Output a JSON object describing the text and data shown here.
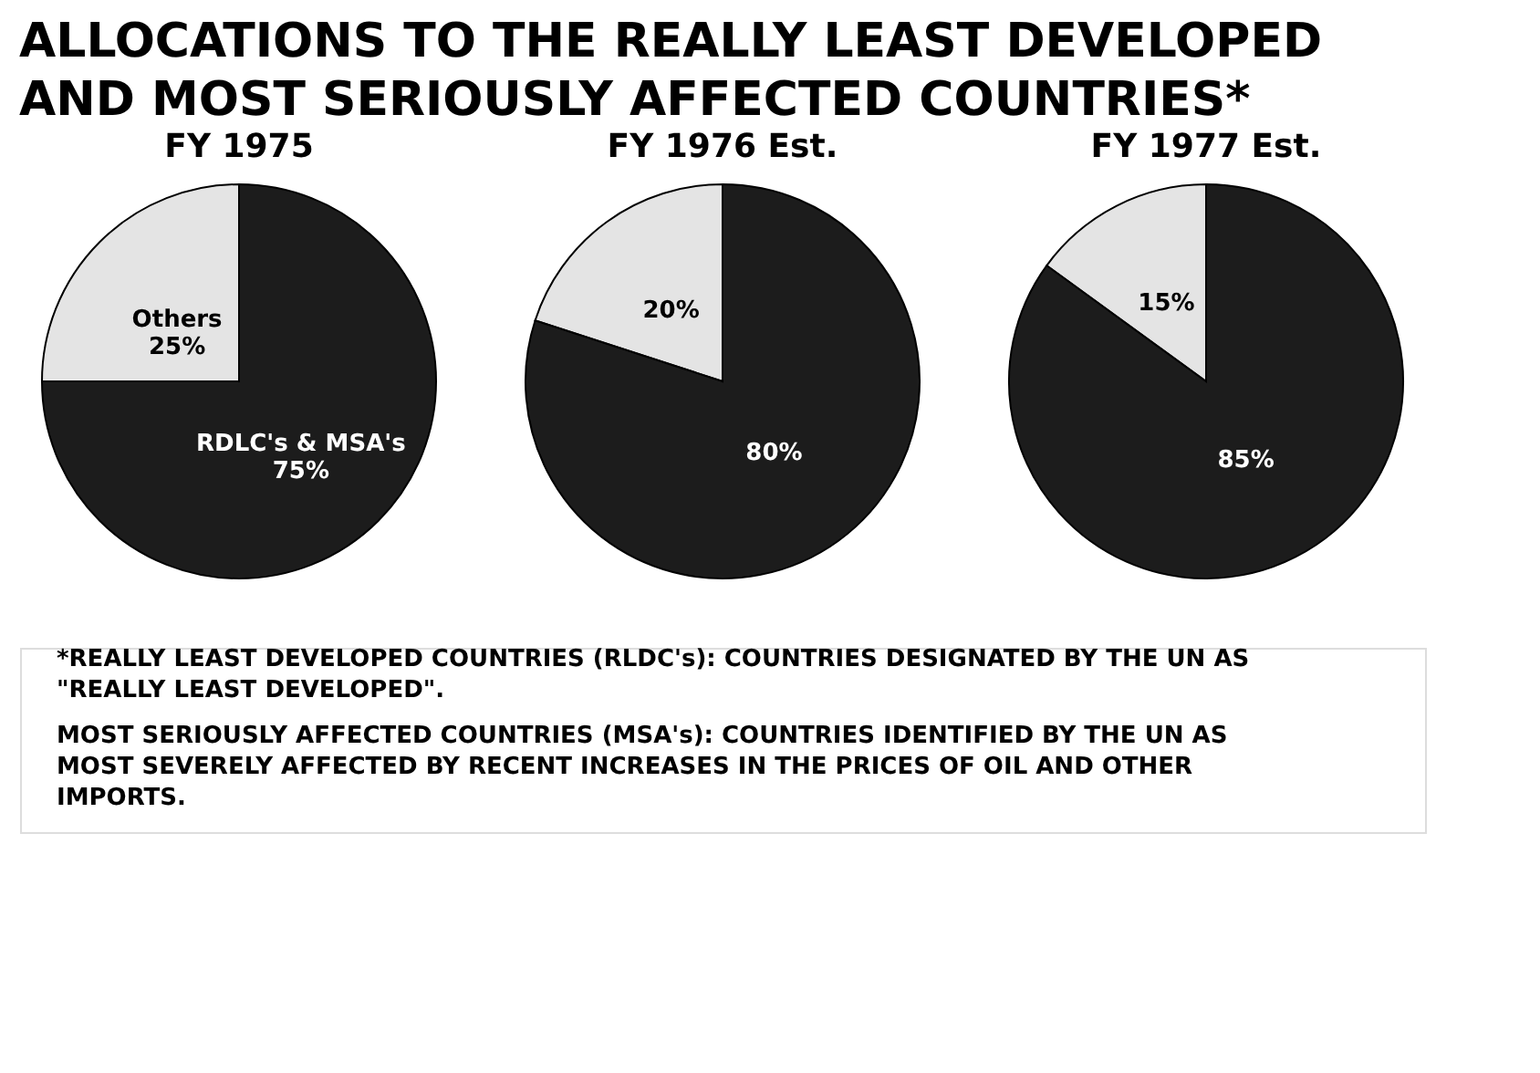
{
  "chart_data": [
    {
      "type": "pie",
      "title": "ALLOCATIONS TO THE REALLY LEAST DEVELOPED AND MOST SERIOUSLY AFFECTED COUNTRIES*",
      "subtitle": "FY 1975",
      "categories": [
        "Others",
        "RDLC's & MSA's"
      ],
      "values": [
        25,
        75
      ],
      "value_labels": [
        "25%",
        "75%"
      ],
      "colors": [
        "#e4e4e4",
        "#1c1c1c"
      ],
      "annotations": [
        "*REALLY LEAST DEVELOPED COUNTRIES (RLDC's): COUNTRIES DESIGNATED BY THE UN AS \"REALLY LEAST DEVELOPED\".",
        "MOST SERIOUSLY AFFECTED COUNTRIES (MSA's): COUNTRIES IDENTIFIED BY THE UN AS MOST SEVERELY AFFECTED BY RECENT INCREASES IN THE PRICES OF OIL AND OTHER IMPORTS."
      ]
    },
    {
      "type": "pie",
      "subtitle": "FY 1976 Est.",
      "categories": [
        null,
        null
      ],
      "values": [
        20,
        80
      ],
      "value_labels": [
        "20%",
        "80%"
      ],
      "colors": [
        "#e4e4e4",
        "#1c1c1c"
      ]
    },
    {
      "type": "pie",
      "subtitle": "FY 1977 Est.",
      "categories": [
        null,
        null
      ],
      "values": [
        15,
        85
      ],
      "value_labels": [
        "15%",
        "85%"
      ],
      "colors": [
        "#e4e4e4",
        "#1c1c1c"
      ]
    }
  ]
}
